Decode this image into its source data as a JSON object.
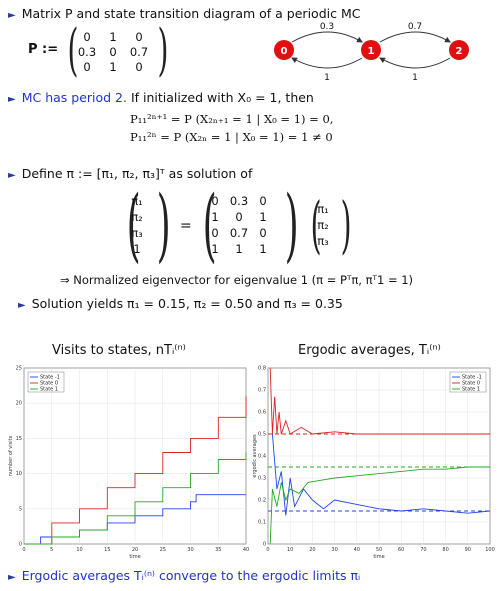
{
  "bullets": {
    "b1": "Matrix P and state transition diagram of a periodic MC",
    "b2_blue": "MC has period 2.",
    "b2_rest": " If initialized with X₀ = 1, then",
    "b3": "Define π := [π₁, π₂, π₃]ᵀ as solution of",
    "b4": "⇒ Normalized eigenvector for eigenvalue 1 (π = Pᵀπ, πᵀ1 = 1)",
    "b5": "Solution yields π₁ = 0.15, π₂ = 0.50 and π₃ = 0.35",
    "b6": "Ergodic averages Tᵢ⁽ⁿ⁾ converge to the ergodic limits πᵢ"
  },
  "matrix_p": {
    "label": "P :=",
    "rows": [
      [
        "0",
        "1",
        "0"
      ],
      [
        "0.3",
        "0",
        "0.7"
      ],
      [
        "0",
        "1",
        "0"
      ]
    ]
  },
  "diagram": {
    "states": [
      "0",
      "1",
      "2"
    ],
    "edges": {
      "top_left": "0.3",
      "top_right": "0.7",
      "bottom_left": "1",
      "bottom_right": "1"
    },
    "state_color": "#e01010"
  },
  "equations": {
    "odd": "P₁₁²ⁿ⁺¹ = P (X₂ₙ₊₁ = 1 | X₀ = 1) = 0,",
    "even": "P₁₁²ⁿ  = P (X₂ₙ  = 1 | X₀ = 1) = 1 ≠ 0"
  },
  "system": {
    "left_vec": [
      "π₁",
      "π₂",
      "π₃",
      "1"
    ],
    "matrix": [
      [
        "0",
        "0.3",
        "0"
      ],
      [
        "1",
        "0",
        "1"
      ],
      [
        "0",
        "0.7",
        "0"
      ],
      [
        "1",
        "1",
        "1"
      ]
    ],
    "right_vec": [
      "π₁",
      "π₂",
      "π₃"
    ],
    "eq_sign": "="
  },
  "chart_titles": {
    "left": "Visits to states, nTᵢ⁽ⁿ⁾",
    "right": "Ergodic averages, Tᵢ⁽ⁿ⁾"
  },
  "chart_data": [
    {
      "type": "line",
      "title": "Visits to states, nTᵢ⁽ⁿ⁾",
      "xlabel": "time",
      "ylabel": "number of visits",
      "xlim": [
        0,
        40
      ],
      "ylim": [
        0,
        25
      ],
      "xticks": [
        "0",
        "5",
        "10",
        "15",
        "20",
        "25",
        "30",
        "35",
        "40"
      ],
      "yticks": [
        "0",
        "5",
        "10",
        "15",
        "20",
        "25"
      ],
      "legend": [
        "State -1",
        "State 0",
        "State 1"
      ],
      "legend_position": "top-left",
      "series_colors": [
        "#2244ee",
        "#dd2222",
        "#22aa22"
      ],
      "series": [
        {
          "name": "State -1",
          "x": [
            0,
            3,
            5,
            8,
            10,
            13,
            15,
            18,
            20,
            25,
            26,
            30,
            31,
            40
          ],
          "y": [
            0,
            1,
            1,
            1,
            2,
            2,
            3,
            3,
            4,
            5,
            5,
            6,
            7,
            7
          ]
        },
        {
          "name": "State 0",
          "x": [
            0,
            5,
            10,
            15,
            20,
            25,
            30,
            35,
            40
          ],
          "y": [
            0,
            3,
            5,
            8,
            10,
            13,
            15,
            18,
            21
          ]
        },
        {
          "name": "State 1",
          "x": [
            0,
            5,
            10,
            15,
            20,
            25,
            30,
            35,
            40
          ],
          "y": [
            0,
            1,
            2,
            4,
            6,
            8,
            10,
            12,
            13
          ]
        }
      ]
    },
    {
      "type": "line",
      "title": "Ergodic averages, Tᵢ⁽ⁿ⁾",
      "xlabel": "time",
      "ylabel": "ergodic averages",
      "xlim": [
        0,
        100
      ],
      "ylim": [
        0,
        0.8
      ],
      "xticks": [
        "0",
        "10",
        "20",
        "30",
        "40",
        "50",
        "60",
        "70",
        "80",
        "90",
        "100"
      ],
      "yticks": [
        "0",
        "0.1",
        "0.2",
        "0.3",
        "0.4",
        "0.5",
        "0.6",
        "0.7",
        "0.8"
      ],
      "legend": [
        "State -1",
        "State 0",
        "State 1"
      ],
      "legend_position": "top-right",
      "series_colors": [
        "#2244ee",
        "#dd2222",
        "#22aa22"
      ],
      "limits": [
        0.15,
        0.5,
        0.35
      ],
      "series": [
        {
          "name": "State -1",
          "x": [
            2,
            4,
            6,
            8,
            10,
            12,
            14,
            16,
            20,
            25,
            30,
            40,
            50,
            60,
            70,
            80,
            90,
            100
          ],
          "y": [
            0.5,
            0.25,
            0.33,
            0.13,
            0.3,
            0.17,
            0.21,
            0.25,
            0.2,
            0.16,
            0.2,
            0.18,
            0.16,
            0.15,
            0.16,
            0.15,
            0.14,
            0.15
          ]
        },
        {
          "name": "State 0",
          "x": [
            1,
            2,
            3,
            4,
            5,
            6,
            8,
            10,
            15,
            20,
            30,
            40,
            60,
            80,
            100
          ],
          "y": [
            0.8,
            0.5,
            0.67,
            0.5,
            0.6,
            0.5,
            0.56,
            0.5,
            0.53,
            0.5,
            0.51,
            0.5,
            0.5,
            0.5,
            0.5
          ]
        },
        {
          "name": "State 1",
          "x": [
            1,
            2,
            4,
            6,
            8,
            10,
            14,
            18,
            24,
            30,
            40,
            50,
            60,
            70,
            80,
            90,
            100
          ],
          "y": [
            0,
            0.25,
            0.17,
            0.28,
            0.2,
            0.25,
            0.23,
            0.28,
            0.29,
            0.3,
            0.31,
            0.32,
            0.33,
            0.34,
            0.34,
            0.35,
            0.35
          ]
        }
      ]
    }
  ]
}
